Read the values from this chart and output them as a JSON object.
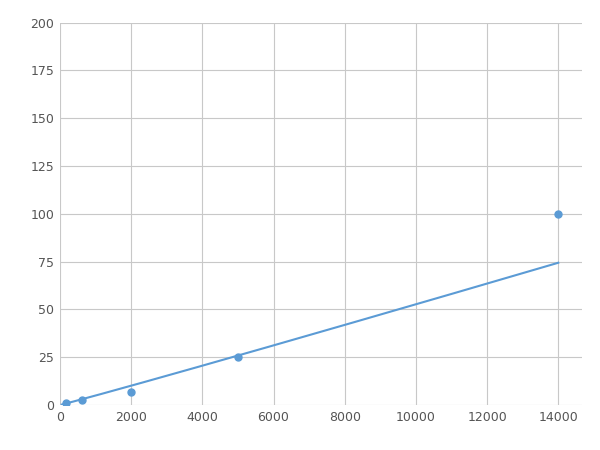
{
  "x_data": [
    156,
    625,
    2000,
    5000,
    14000
  ],
  "y_data": [
    1.0,
    2.5,
    7.0,
    25.0,
    100.0
  ],
  "marker_indices": [
    0,
    1,
    2,
    3,
    4
  ],
  "line_color": "#5B9BD5",
  "marker_color": "#5B9BD5",
  "marker_size": 5,
  "xlim": [
    0,
    14667
  ],
  "ylim": [
    0,
    200
  ],
  "xticks": [
    0,
    2000,
    4000,
    6000,
    8000,
    10000,
    12000,
    14000
  ],
  "yticks": [
    0,
    25,
    50,
    75,
    100,
    125,
    150,
    175,
    200
  ],
  "grid_color": "#C8C8C8",
  "background_color": "#FFFFFF",
  "fig_background": "#FFFFFF",
  "power_a": 0.000468,
  "power_b": 1.48
}
